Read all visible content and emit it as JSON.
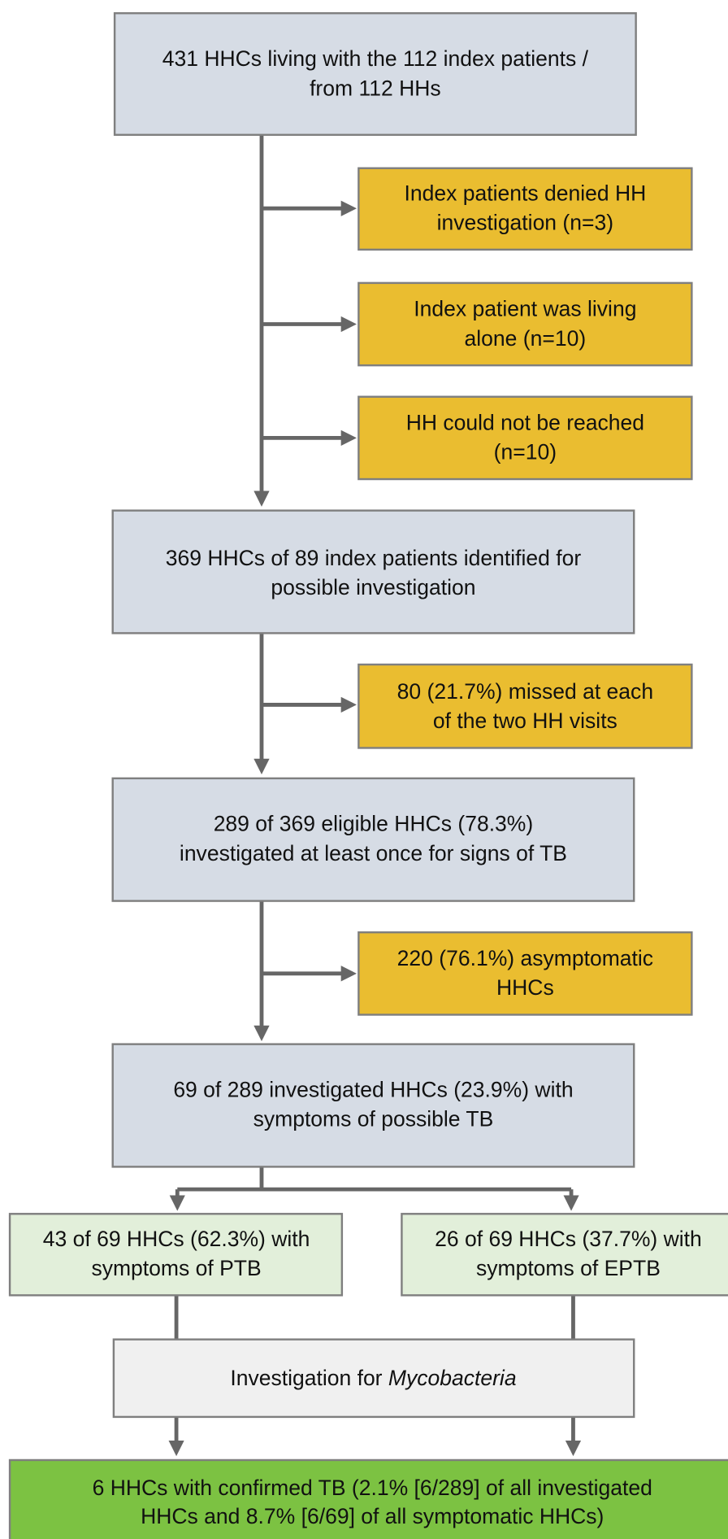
{
  "nodes": [
    {
      "lines": [
        "431 HHCs living with the 112 index patients /",
        "from 112 HHs"
      ]
    },
    {
      "lines": [
        "Index patients denied HH",
        "investigation (n=3)"
      ]
    },
    {
      "lines": [
        "Index patient was living",
        "alone (n=10)"
      ]
    },
    {
      "lines": [
        "HH could not be reached",
        "(n=10)"
      ]
    },
    {
      "lines": [
        "369 HHCs of 89 index patients identified for",
        "possible investigation"
      ]
    },
    {
      "lines": [
        "80 (21.7%) missed at each",
        "of the two HH visits"
      ]
    },
    {
      "lines": [
        "289 of 369 eligible HHCs (78.3%)",
        "investigated at least once for signs of TB"
      ]
    },
    {
      "lines": [
        "220 (76.1%) asymptomatic",
        "HHCs"
      ]
    },
    {
      "lines": [
        "69 of 289 investigated HHCs (23.9%) with",
        "symptoms of possible TB"
      ]
    },
    {
      "lines": [
        "43 of 69 HHCs (62.3%) with",
        "symptoms of PTB"
      ]
    },
    {
      "lines": [
        "26 of 69 HHCs (37.7%) with",
        "symptoms of EPTB"
      ]
    },
    {
      "lines": [
        "Investigation for ",
        "Mycobacteria"
      ]
    },
    {
      "lines": [
        "6 HHCs with confirmed TB (2.1% [6/289] of all investigated",
        "HHCs and 8.7% [6/69] of all symptomatic HHCs)"
      ]
    }
  ]
}
